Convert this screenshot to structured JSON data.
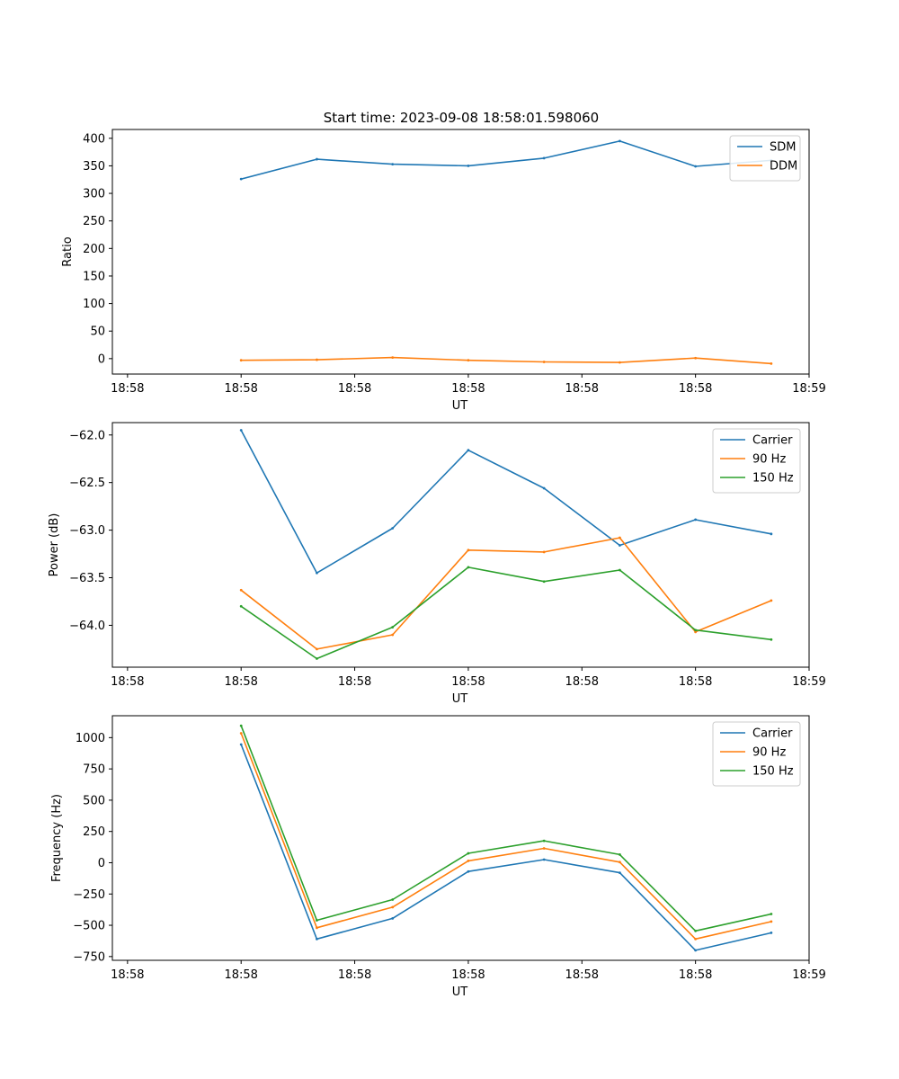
{
  "figure_title": "Start time: 2023-09-08 18:58:01.598060",
  "colors": {
    "blue": "#1f77b4",
    "orange": "#ff7f0e",
    "green": "#2ca02c"
  },
  "chart_data": [
    {
      "type": "line",
      "title": "Start time: 2023-09-08 18:58:01.598060",
      "xlabel": "UT",
      "ylabel": "Ratio",
      "x": [
        1,
        2,
        3,
        4,
        5,
        6,
        7,
        8
      ],
      "xlim": [
        -0.7,
        8.5
      ],
      "x_ticks": [
        -0.5,
        1.0,
        2.5,
        4.0,
        5.5,
        7.0,
        8.5
      ],
      "x_tick_labels": [
        "18:58",
        "18:58",
        "18:58",
        "18:58",
        "18:58",
        "18:58",
        "18:59"
      ],
      "ylim": [
        -28,
        416
      ],
      "y_ticks": [
        0,
        50,
        100,
        150,
        200,
        250,
        300,
        350,
        400
      ],
      "y_tick_labels": [
        "0",
        "50",
        "100",
        "150",
        "200",
        "250",
        "300",
        "350",
        "400"
      ],
      "legend_position": "top-right",
      "series": [
        {
          "name": "SDM",
          "color": "#1f77b4",
          "values": [
            326,
            362,
            353,
            350,
            364,
            395,
            349,
            360
          ]
        },
        {
          "name": "DDM",
          "color": "#ff7f0e",
          "values": [
            -3,
            -2,
            2,
            -3,
            -6,
            -7,
            1,
            -9
          ]
        }
      ]
    },
    {
      "type": "line",
      "title": "",
      "xlabel": "UT",
      "ylabel": "Power (dB)",
      "x": [
        1,
        2,
        3,
        4,
        5,
        6,
        7,
        8
      ],
      "xlim": [
        -0.7,
        8.5
      ],
      "x_ticks": [
        -0.5,
        1.0,
        2.5,
        4.0,
        5.5,
        7.0,
        8.5
      ],
      "x_tick_labels": [
        "18:58",
        "18:58",
        "18:58",
        "18:58",
        "18:58",
        "18:58",
        "18:59"
      ],
      "ylim": [
        -64.44,
        -61.87
      ],
      "y_ticks": [
        -62.0,
        -62.5,
        -63.0,
        -63.5,
        -64.0
      ],
      "y_tick_labels": [
        "−62.0",
        "−62.5",
        "−63.0",
        "−63.5",
        "−64.0"
      ],
      "legend_position": "top-right",
      "series": [
        {
          "name": "Carrier",
          "color": "#1f77b4",
          "values": [
            -61.95,
            -63.45,
            -62.98,
            -62.16,
            -62.56,
            -63.16,
            -62.89,
            -63.04
          ]
        },
        {
          "name": "90 Hz",
          "color": "#ff7f0e",
          "values": [
            -63.63,
            -64.25,
            -64.1,
            -63.21,
            -63.23,
            -63.08,
            -64.07,
            -63.74
          ]
        },
        {
          "name": "150 Hz",
          "color": "#2ca02c",
          "values": [
            -63.8,
            -64.35,
            -64.02,
            -63.39,
            -63.54,
            -63.42,
            -64.05,
            -64.15
          ]
        }
      ]
    },
    {
      "type": "line",
      "title": "",
      "xlabel": "UT",
      "ylabel": "Frequency (Hz)",
      "x": [
        1,
        2,
        3,
        4,
        5,
        6,
        7,
        8
      ],
      "xlim": [
        -0.7,
        8.5
      ],
      "x_ticks": [
        -0.5,
        1.0,
        2.5,
        4.0,
        5.5,
        7.0,
        8.5
      ],
      "x_tick_labels": [
        "18:58",
        "18:58",
        "18:58",
        "18:58",
        "18:58",
        "18:58",
        "18:59"
      ],
      "ylim": [
        -780,
        1175
      ],
      "y_ticks": [
        1000,
        750,
        500,
        250,
        0,
        -250,
        -500,
        -750
      ],
      "y_tick_labels": [
        "1000",
        "750",
        "500",
        "250",
        "0",
        "−250",
        "−500",
        "−750"
      ],
      "legend_position": "top-right",
      "series": [
        {
          "name": "Carrier",
          "color": "#1f77b4",
          "values": [
            945,
            -610,
            -445,
            -70,
            25,
            -80,
            -700,
            -560
          ]
        },
        {
          "name": "90 Hz",
          "color": "#ff7f0e",
          "values": [
            1035,
            -520,
            -355,
            15,
            115,
            5,
            -610,
            -470
          ]
        },
        {
          "name": "150 Hz",
          "color": "#2ca02c",
          "values": [
            1095,
            -460,
            -295,
            75,
            175,
            65,
            -545,
            -410
          ]
        }
      ]
    }
  ]
}
